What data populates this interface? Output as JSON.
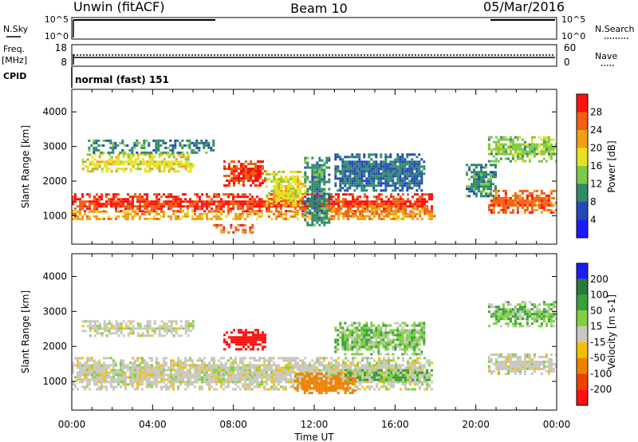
{
  "header": {
    "station": "Unwin (fitACF)",
    "beam": "Beam 10",
    "date": "05/Mar/2016"
  },
  "top_panels": {
    "nsky_label": "N.Sky",
    "nsky_ticks": [
      "10^5",
      "10^0"
    ],
    "nsearch_label": "N.Search",
    "nsearch_ticks": [
      "10^5",
      "10^0"
    ],
    "freq_label_1": "Freq.",
    "freq_label_2": "[MHz]",
    "freq_ticks": [
      "18",
      "8"
    ],
    "nave_label": "Nave",
    "nave_ticks": [
      "60",
      "0"
    ],
    "cpid_label": "CPID",
    "cpid_value": "normal (fast) 151"
  },
  "chart_data": [
    {
      "type": "heatmap",
      "name": "power",
      "ylabel": "Slant Range [km]",
      "xlabel": "Time UT",
      "x_ticks": [
        "00:00",
        "04:00",
        "08:00",
        "12:00",
        "16:00",
        "20:00",
        "00:00"
      ],
      "x_range_hours": [
        0,
        24
      ],
      "y_ticks": [
        1000,
        2000,
        3000,
        4000
      ],
      "ylim": [
        180,
        4650
      ],
      "colorbar": {
        "label": "Power [dB]",
        "ticks": [
          4,
          8,
          12,
          16,
          20,
          24,
          28
        ],
        "range": [
          0,
          32
        ],
        "colors": [
          "#1a1aff",
          "#2548b8",
          "#2f8a6a",
          "#7ec84a",
          "#e8e020",
          "#f0a010",
          "#f06010",
          "#ff1010"
        ]
      },
      "regions": [
        {
          "t": [
            0.0,
            17.8
          ],
          "r": [
            1100,
            1650
          ],
          "level": 28
        },
        {
          "t": [
            0.0,
            17.8
          ],
          "r": [
            900,
            1150
          ],
          "level": 22
        },
        {
          "t": [
            7.5,
            9.6
          ],
          "r": [
            1850,
            2600
          ],
          "level": 28
        },
        {
          "t": [
            9.6,
            11.5
          ],
          "r": [
            1300,
            2300
          ],
          "level": 18
        },
        {
          "t": [
            11.5,
            12.8
          ],
          "r": [
            700,
            2700
          ],
          "level": 10
        },
        {
          "t": [
            12.8,
            18.0
          ],
          "r": [
            1000,
            1300
          ],
          "level": 24
        },
        {
          "t": [
            13.0,
            17.5
          ],
          "r": [
            1700,
            2800
          ],
          "level": 8
        },
        {
          "t": [
            0.5,
            6.0
          ],
          "r": [
            2300,
            2800
          ],
          "level": 18
        },
        {
          "t": [
            0.8,
            7.0
          ],
          "r": [
            2850,
            3200
          ],
          "level": 10
        },
        {
          "t": [
            7.0,
            9.0
          ],
          "r": [
            550,
            760
          ],
          "level": 26
        },
        {
          "t": [
            20.6,
            24.0
          ],
          "r": [
            1100,
            1750
          ],
          "level": 26
        },
        {
          "t": [
            20.6,
            24.0
          ],
          "r": [
            2600,
            3300
          ],
          "level": 14
        },
        {
          "t": [
            19.5,
            21.0
          ],
          "r": [
            1600,
            2500
          ],
          "level": 10
        }
      ]
    },
    {
      "type": "heatmap",
      "name": "velocity",
      "ylabel": "Slant Range [km]",
      "xlabel": "Time UT",
      "x_ticks": [
        "00:00",
        "04:00",
        "08:00",
        "12:00",
        "16:00",
        "20:00",
        "00:00"
      ],
      "x_range_hours": [
        0,
        24
      ],
      "y_ticks": [
        1000,
        2000,
        3000,
        4000
      ],
      "ylim": [
        180,
        4650
      ],
      "colorbar": {
        "label": "Velocity [m s-1]",
        "ticks": [
          200,
          100,
          50,
          15,
          -15,
          -50,
          -100,
          -200
        ],
        "colors": [
          "#1a1aff",
          "#2a7a3a",
          "#3aa03a",
          "#80d040",
          "#c8c8c0",
          "#f0c000",
          "#f08000",
          "#f04000",
          "#ff1010"
        ]
      },
      "regions": [
        {
          "t": [
            0.0,
            17.8
          ],
          "r": [
            800,
            1700
          ],
          "level": 0
        },
        {
          "t": [
            0.5,
            6.0
          ],
          "r": [
            2300,
            2750
          ],
          "level": 0
        },
        {
          "t": [
            7.5,
            9.6
          ],
          "r": [
            1900,
            2500
          ],
          "level": -200
        },
        {
          "t": [
            11.0,
            14.0
          ],
          "r": [
            650,
            1250
          ],
          "level": -80
        },
        {
          "t": [
            13.5,
            17.8
          ],
          "r": [
            1050,
            1350
          ],
          "level": 40
        },
        {
          "t": [
            13.0,
            17.5
          ],
          "r": [
            1800,
            2700
          ],
          "level": 25
        },
        {
          "t": [
            20.6,
            24.0
          ],
          "r": [
            1200,
            1800
          ],
          "level": 0
        },
        {
          "t": [
            20.6,
            24.0
          ],
          "r": [
            2600,
            3300
          ],
          "level": 25
        }
      ]
    }
  ]
}
